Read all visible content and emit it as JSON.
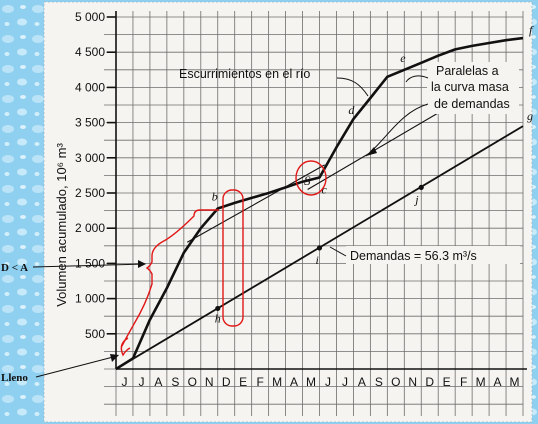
{
  "chart_data": {
    "type": "line",
    "ylabel": "Volumen acumulado, 10⁶ m³",
    "y_ticks": [
      "500",
      "1 000",
      "1 500",
      "2 000",
      "2 500",
      "3 000",
      "3 500",
      "4 000",
      "4 500",
      "5 000"
    ],
    "ylim": [
      0,
      5000
    ],
    "x_months": [
      "J",
      "J",
      "A",
      "S",
      "O",
      "N",
      "D",
      "E",
      "F",
      "M",
      "A",
      "M",
      "J",
      "J",
      "A",
      "S",
      "O",
      "N",
      "D",
      "E",
      "F",
      "M",
      "A",
      "M"
    ],
    "grid": true,
    "series": [
      {
        "name": "Escurrimientos en el río",
        "x": [
          0,
          1,
          2,
          3,
          4,
          5,
          6,
          7,
          8,
          9,
          10,
          11,
          12,
          13,
          14,
          15,
          16,
          17,
          18,
          19,
          20,
          21,
          22,
          23,
          24
        ],
        "values": [
          0,
          150,
          700,
          1150,
          1650,
          2000,
          2280,
          2360,
          2430,
          2500,
          2580,
          2660,
          2720,
          3150,
          3550,
          3850,
          4150,
          4250,
          4350,
          4450,
          4540,
          4590,
          4630,
          4670,
          4700
        ]
      },
      {
        "name": "Demandas",
        "x": [
          0,
          24
        ],
        "values": [
          0,
          3450
        ]
      }
    ],
    "parallels": [
      {
        "x": [
          4.2,
          12.3
        ],
        "values": [
          1800,
          2900
        ]
      },
      {
        "x": [
          11.3,
          19.8
        ],
        "values": [
          2550,
          3750
        ]
      }
    ],
    "points": [
      {
        "label": "b",
        "x": 6,
        "y": 2280
      },
      {
        "label": "c",
        "x": 12,
        "y": 2720
      },
      {
        "label": "d",
        "x": 14,
        "y": 3550
      },
      {
        "label": "e",
        "x": 17,
        "y": 4250
      },
      {
        "label": "f",
        "x": 24,
        "y": 4700
      },
      {
        "label": "g",
        "x": 24,
        "y": 3450
      },
      {
        "label": "h",
        "x": 6,
        "y": 860
      },
      {
        "label": "i",
        "x": 12,
        "y": 1720
      },
      {
        "label": "j",
        "x": 18,
        "y": 2580
      }
    ],
    "annotations": {
      "runoff": "Escurrimientos en el río",
      "parallels_line1": "Paralelas a",
      "parallels_line2": "la curva masa",
      "parallels_line3": "de demandas",
      "demand_text": "Demandas  =  56.3 m³/s",
      "s_label": "S",
      "deficit": "D < A",
      "full": "Lleno"
    }
  },
  "colors": {
    "highlight": "#e01818",
    "background_pattern": "#8fd0f0"
  }
}
